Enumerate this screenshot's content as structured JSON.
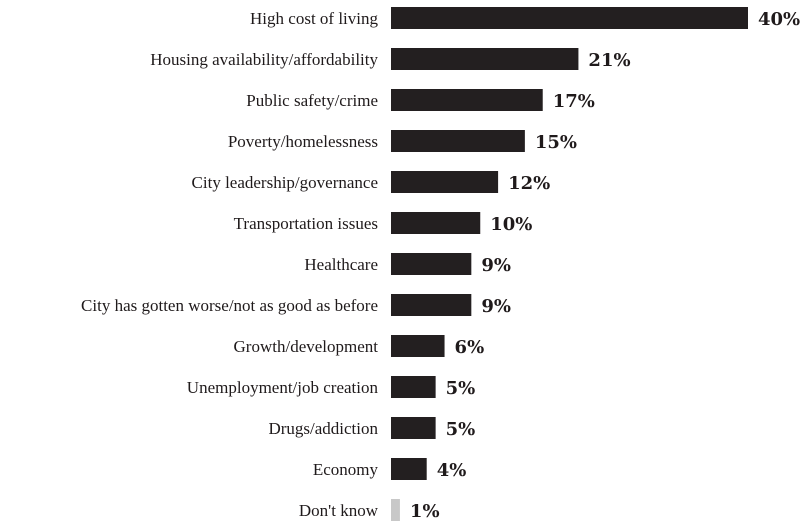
{
  "chart_data": {
    "type": "bar",
    "orientation": "horizontal",
    "categories": [
      "High cost of living",
      "Housing availability/affordability",
      "Public safety/crime",
      "Poverty/homelessness",
      "City leadership/governance",
      "Transportation issues",
      "Healthcare",
      "City has gotten worse/not as good as before",
      "Growth/development",
      "Unemployment/job creation",
      "Drugs/addiction",
      "Economy",
      "Don't know"
    ],
    "values": [
      40,
      21,
      17,
      15,
      12,
      10,
      9,
      9,
      6,
      5,
      5,
      4,
      1
    ],
    "value_labels": [
      "40%",
      "21%",
      "17%",
      "15%",
      "12%",
      "10%",
      "9%",
      "9%",
      "6%",
      "5%",
      "5%",
      "4%",
      "1%"
    ],
    "unit": "%",
    "xlim": [
      0,
      40
    ],
    "grid": false,
    "legend": "none",
    "colors": {
      "bar": "#231f20",
      "bar_muted": "#c8c8c8",
      "text": "#1f1a1b"
    },
    "muted_categories": [
      "Don't know"
    ]
  }
}
